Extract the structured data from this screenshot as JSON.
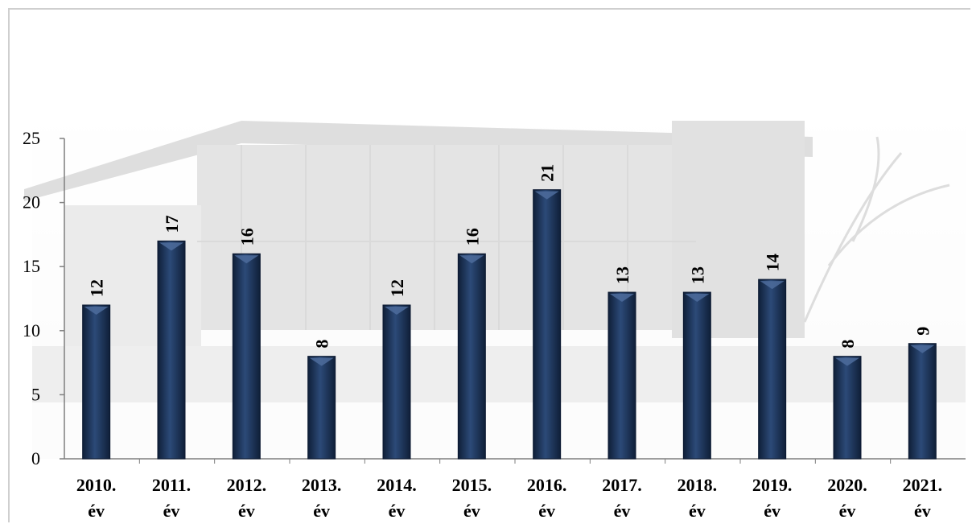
{
  "chart_data": {
    "type": "bar",
    "title": "",
    "xlabel": "",
    "ylabel": "",
    "ylim": [
      0,
      25
    ],
    "yticks": [
      0,
      5,
      10,
      15,
      20,
      25
    ],
    "grid": false,
    "legend": "none",
    "data_label_orientation": "rotated",
    "categories": [
      [
        "2010.",
        "év"
      ],
      [
        "2011.",
        "év"
      ],
      [
        "2012.",
        "év"
      ],
      [
        "2013.",
        "év"
      ],
      [
        "2014.",
        "év"
      ],
      [
        "2015.",
        "év"
      ],
      [
        "2016.",
        "év"
      ],
      [
        "2017.",
        "év"
      ],
      [
        "2018.",
        "év"
      ],
      [
        "2019.",
        "év"
      ],
      [
        "2020.",
        "év"
      ],
      [
        "2021.",
        "év"
      ]
    ],
    "values": [
      12,
      17,
      16,
      8,
      12,
      16,
      21,
      13,
      13,
      14,
      8,
      9
    ],
    "colors": {
      "bar": "#1c3358",
      "bar_highlight": "#4d6c9c",
      "axis": "#7f7f7f",
      "background_photo": "#9a9a9a"
    }
  }
}
